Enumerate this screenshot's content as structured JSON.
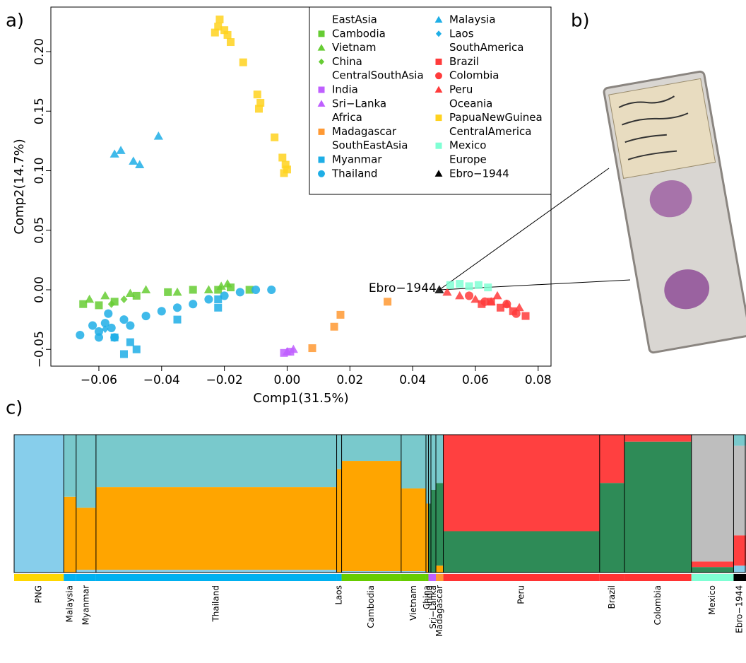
{
  "chart_data": [
    {
      "type": "scatter",
      "panel_label": "a)",
      "xlabel": "Comp1(31.5%)",
      "ylabel": "Comp2(14.7%)",
      "xlim": [
        -0.0753,
        0.0841
      ],
      "ylim": [
        -0.0641,
        0.2374
      ],
      "xticks": [
        {
          "value": -0.06,
          "label": "−0.06"
        },
        {
          "value": -0.04,
          "label": "−0.04"
        },
        {
          "value": -0.02,
          "label": "−0.02"
        },
        {
          "value": 0,
          "label": "0.00"
        },
        0.02,
        0.04,
        0.06,
        0.08
      ],
      "yticks": [
        {
          "value": -0.05,
          "label": "−0.05"
        },
        {
          "value": 0,
          "label": "0.00"
        },
        0.05,
        {
          "value": 0.1,
          "label": "0.10"
        },
        0.15,
        {
          "value": 0.2,
          "label": "0.20"
        }
      ],
      "regions": [
        {
          "name": "EastAsia",
          "series": [
            {
              "name": "Cambodia",
              "color": "#66cc33",
              "marker": "square",
              "x": [
                -0.065,
                -0.06,
                -0.055,
                -0.048,
                -0.038,
                -0.03,
                -0.022,
                -0.018,
                -0.012
              ],
              "y": [
                -0.012,
                -0.013,
                -0.01,
                -0.005,
                -0.002,
                0,
                0,
                0.002,
                0
              ]
            },
            {
              "name": "Vietnam",
              "color": "#66cc33",
              "marker": "triangle",
              "x": [
                -0.063,
                -0.058,
                -0.05,
                -0.045,
                -0.035,
                -0.025,
                -0.021,
                -0.019
              ],
              "y": [
                -0.008,
                -0.005,
                -0.003,
                0,
                -0.002,
                0,
                0.003,
                0.005
              ]
            },
            {
              "name": "China",
              "color": "#66cc33",
              "marker": "diamond",
              "x": [
                -0.056,
                -0.052
              ],
              "y": [
                -0.012,
                -0.008
              ]
            }
          ]
        },
        {
          "name": "CentralSouthAsia",
          "series": [
            {
              "name": "India",
              "color": "#bf5fff",
              "marker": "square",
              "x": [
                -0.001,
                0.001
              ],
              "y": [
                -0.053,
                -0.052
              ]
            },
            {
              "name": "Sri−Lanka",
              "color": "#bf5fff",
              "marker": "triangle",
              "x": [
                0.0,
                0.002
              ],
              "y": [
                -0.052,
                -0.05
              ]
            }
          ]
        },
        {
          "name": "Africa",
          "series": [
            {
              "name": "Madagascar",
              "color": "#ff9933",
              "marker": "square",
              "x": [
                0.008,
                0.015,
                0.017,
                0.032
              ],
              "y": [
                -0.049,
                -0.031,
                -0.021,
                -0.01
              ]
            }
          ]
        },
        {
          "name": "SouthEastAsia",
          "series": [
            {
              "name": "Myanmar",
              "color": "#1eaee6",
              "marker": "square",
              "x": [
                -0.052,
                -0.05,
                -0.048,
                -0.035,
                -0.022,
                -0.022,
                -0.055
              ],
              "y": [
                -0.054,
                -0.044,
                -0.05,
                -0.025,
                -0.008,
                -0.015,
                -0.04
              ]
            },
            {
              "name": "Thailand",
              "color": "#1eaee6",
              "marker": "circle",
              "x": [
                -0.066,
                -0.062,
                -0.06,
                -0.058,
                -0.056,
                -0.055,
                -0.052,
                -0.05,
                -0.045,
                -0.04,
                -0.035,
                -0.03,
                -0.025,
                -0.02,
                -0.015,
                -0.01,
                -0.005,
                -0.06,
                -0.057
              ],
              "y": [
                -0.038,
                -0.03,
                -0.035,
                -0.028,
                -0.032,
                -0.04,
                -0.025,
                -0.03,
                -0.022,
                -0.018,
                -0.015,
                -0.012,
                -0.008,
                -0.005,
                -0.002,
                0,
                0,
                -0.04,
                -0.02
              ]
            },
            {
              "name": "Malaysia",
              "color": "#1eaee6",
              "marker": "triangle",
              "x": [
                -0.055,
                -0.053,
                -0.049,
                -0.047,
                -0.041
              ],
              "y": [
                0.114,
                0.117,
                0.108,
                0.105,
                0.129
              ]
            },
            {
              "name": "Laos",
              "color": "#1eaee6",
              "marker": "diamond",
              "x": [
                -0.058
              ],
              "y": [
                -0.033
              ]
            }
          ]
        },
        {
          "name": "SouthAmerica",
          "series": [
            {
              "name": "Brazil",
              "color": "#ff3b3b",
              "marker": "square",
              "x": [
                0.062,
                0.068,
                0.072,
                0.076,
                0.065
              ],
              "y": [
                -0.012,
                -0.015,
                -0.018,
                -0.022,
                -0.01
              ]
            },
            {
              "name": "Colombia",
              "color": "#ff3b3b",
              "marker": "circle",
              "x": [
                0.058,
                0.063,
                0.07,
                0.073
              ],
              "y": [
                -0.005,
                -0.01,
                -0.012,
                -0.02
              ]
            },
            {
              "name": "Peru",
              "color": "#ff3b3b",
              "marker": "triangle",
              "x": [
                0.051,
                0.055,
                0.06,
                0.065,
                0.07,
                0.074,
                0.067
              ],
              "y": [
                -0.002,
                -0.005,
                -0.008,
                -0.01,
                -0.012,
                -0.015,
                -0.005
              ]
            }
          ]
        },
        {
          "name": "Oceania",
          "series": [
            {
              "name": "PapuaNewGuinea",
              "color": "#ffd21f",
              "marker": "square",
              "x": [
                -0.0215,
                -0.022,
                -0.023,
                -0.02,
                -0.019,
                -0.018,
                -0.014,
                -0.0095,
                -0.0085,
                -0.009,
                -0.004,
                -0.0015,
                -0.0005,
                0.0,
                -0.001
              ],
              "y": [
                0.227,
                0.221,
                0.216,
                0.218,
                0.214,
                0.208,
                0.191,
                0.164,
                0.157,
                0.152,
                0.128,
                0.111,
                0.105,
                0.101,
                0.098
              ]
            }
          ]
        },
        {
          "name": "CentralAmerica",
          "series": [
            {
              "name": "Mexico",
              "color": "#7fffd4",
              "marker": "square",
              "x": [
                0.052,
                0.055,
                0.058,
                0.061,
                0.064
              ],
              "y": [
                0.004,
                0.005,
                0.003,
                0.004,
                0.002
              ]
            }
          ]
        },
        {
          "name": "Europe",
          "series": [
            {
              "name": "Ebro−1944",
              "color": "#000000",
              "marker": "triangle",
              "x": [
                0.0485
              ],
              "y": [
                0
              ]
            }
          ]
        }
      ],
      "annotation": {
        "text": "Ebro−1944",
        "x": 0.0485,
        "y": 0
      }
    },
    {
      "type": "admixture",
      "panel_label": "c)",
      "components": [
        {
          "color": "#87ceeb"
        },
        {
          "color": "#ffa500"
        },
        {
          "color": "#2e8b57"
        },
        {
          "color": "#ff4040"
        },
        {
          "color": "#bebebe"
        },
        {
          "color": "#79c9cc"
        }
      ],
      "groups": [
        {
          "name": "PNG",
          "band_color": "#ffd700",
          "n": 20,
          "values": [
            1,
            0,
            0,
            0,
            0,
            0
          ]
        },
        {
          "name": "Malaysia",
          "band_color": "#00b0f0",
          "n": 5,
          "values": [
            0,
            0.55,
            0,
            0,
            0,
            0.45
          ]
        },
        {
          "name": "Myanmar",
          "band_color": "#00b0f0",
          "n": 8,
          "values": [
            0.02,
            0.45,
            0,
            0,
            0,
            0.53
          ]
        },
        {
          "name": "Thailand",
          "band_color": "#00b0f0",
          "n": 97,
          "values": [
            0.02,
            0.6,
            0,
            0,
            0,
            0.38
          ]
        },
        {
          "name": "Laos",
          "band_color": "#00b0f0",
          "n": 2,
          "values": [
            0,
            0.75,
            0,
            0,
            0,
            0.25
          ]
        },
        {
          "name": "Cambodia",
          "band_color": "#66cc00",
          "n": 24,
          "values": [
            0.01,
            0.8,
            0,
            0,
            0,
            0.19
          ]
        },
        {
          "name": "Vietnam",
          "band_color": "#66cc00",
          "n": 10,
          "values": [
            0.01,
            0.6,
            0,
            0,
            0,
            0.39
          ]
        },
        {
          "name": "China",
          "band_color": "#66cc00",
          "n": 1,
          "values": [
            0,
            0.5,
            0,
            0,
            0,
            0.5
          ]
        },
        {
          "name": "India",
          "band_color": "#bf5fff",
          "n": 1,
          "values": [
            0,
            0,
            0.5,
            0,
            0,
            0.5
          ]
        },
        {
          "name": "Sri−Lanka",
          "band_color": "#bf5fff",
          "n": 2,
          "values": [
            0,
            0,
            0.6,
            0,
            0,
            0.4
          ]
        },
        {
          "name": "Madagascar",
          "band_color": "#ff9933",
          "n": 3,
          "values": [
            0,
            0.05,
            0.6,
            0,
            0,
            0.35
          ]
        },
        {
          "name": "Peru",
          "band_color": "#ff3333",
          "n": 63,
          "values": [
            0,
            0,
            0.3,
            0.7,
            0,
            0
          ]
        },
        {
          "name": "Brazil",
          "band_color": "#ff3333",
          "n": 10,
          "values": [
            0,
            0,
            0.65,
            0.35,
            0,
            0
          ]
        },
        {
          "name": "Colombia",
          "band_color": "#ff3333",
          "n": 27,
          "values": [
            0,
            0,
            0.95,
            0.05,
            0,
            0
          ]
        },
        {
          "name": "Mexico",
          "band_color": "#7fffd4",
          "n": 17,
          "values": [
            0,
            0,
            0.04,
            0.04,
            0.92,
            0
          ]
        },
        {
          "name": "Ebro−1944",
          "band_color": "#000000",
          "n": 5,
          "values": [
            0.05,
            0,
            0,
            0.22,
            0.65,
            0.08
          ]
        }
      ]
    }
  ],
  "panel_b": {
    "label": "b)"
  }
}
